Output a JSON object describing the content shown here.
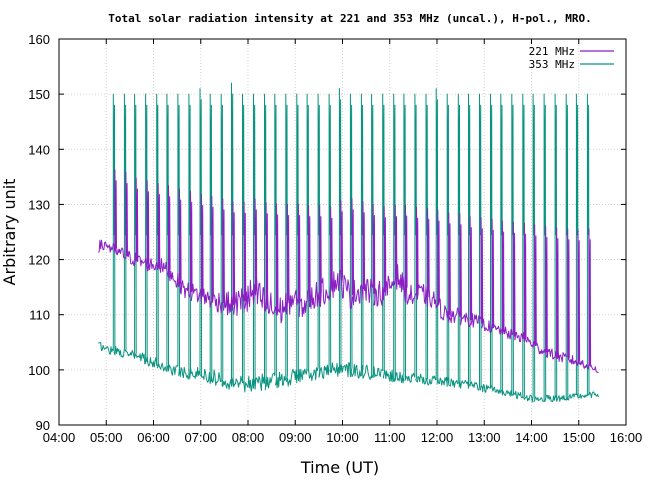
{
  "chart_data": {
    "type": "line",
    "title": "Total solar radiation intensity at 221 and 353 MHz (uncal.), H-pol., MRO.",
    "xlabel": "Time (UT)",
    "ylabel": "Arbitrary unit",
    "xlim": [
      "04:00",
      "16:00"
    ],
    "ylim": [
      90,
      160
    ],
    "x_ticks": [
      "04:00",
      "05:00",
      "06:00",
      "07:00",
      "08:00",
      "09:00",
      "10:00",
      "11:00",
      "12:00",
      "13:00",
      "14:00",
      "15:00",
      "16:00"
    ],
    "y_ticks": [
      90,
      100,
      110,
      120,
      130,
      140,
      150,
      160
    ],
    "grid": true,
    "legend_position": "top-right",
    "series": [
      {
        "name": "221 MHz",
        "color": "#8b1fc4",
        "baseline": [
          [
            "04:50",
            122.2
          ],
          [
            "05:00",
            122.8
          ],
          [
            "05:10",
            121.6
          ],
          [
            "05:20",
            121.0
          ],
          [
            "05:30",
            120.4
          ],
          [
            "05:40",
            119.8
          ],
          [
            "05:50",
            119.3
          ],
          [
            "06:00",
            119.0
          ],
          [
            "06:10",
            118.8
          ],
          [
            "06:20",
            117.8
          ],
          [
            "06:40",
            114.5
          ],
          [
            "07:00",
            113.5
          ],
          [
            "07:20",
            112.5
          ],
          [
            "07:40",
            111.8
          ],
          [
            "07:55",
            112.5
          ],
          [
            "08:10",
            113.8
          ],
          [
            "08:25",
            111.5
          ],
          [
            "08:40",
            110.5
          ],
          [
            "08:55",
            113.0
          ],
          [
            "09:10",
            111.5
          ],
          [
            "09:25",
            113.5
          ],
          [
            "09:40",
            114.5
          ],
          [
            "09:55",
            116.5
          ],
          [
            "10:10",
            113.5
          ],
          [
            "10:25",
            114.8
          ],
          [
            "10:40",
            113.8
          ],
          [
            "10:55",
            114.2
          ],
          [
            "11:10",
            117.0
          ],
          [
            "11:25",
            113.2
          ],
          [
            "11:40",
            113.8
          ],
          [
            "11:55",
            112.8
          ],
          [
            "12:10",
            110.2
          ],
          [
            "12:30",
            109.6
          ],
          [
            "12:50",
            108.8
          ],
          [
            "13:10",
            107.6
          ],
          [
            "13:30",
            106.6
          ],
          [
            "13:50",
            105.8
          ],
          [
            "14:10",
            103.8
          ],
          [
            "14:30",
            102.6
          ],
          [
            "14:50",
            101.8
          ],
          [
            "15:10",
            101.0
          ],
          [
            "15:25",
            100.0
          ]
        ],
        "noise_amplitude": [
          [
            "04:50",
            1.2
          ],
          [
            "06:30",
            1.5
          ],
          [
            "07:40",
            2.2
          ],
          [
            "08:00",
            3.5
          ],
          [
            "09:00",
            2.5
          ],
          [
            "10:00",
            2.6
          ],
          [
            "11:00",
            2.3
          ],
          [
            "12:00",
            1.8
          ],
          [
            "13:00",
            1.1
          ],
          [
            "14:00",
            1.0
          ],
          [
            "15:25",
            0.9
          ]
        ],
        "spikes": [
          [
            "05:11",
            136.3
          ],
          [
            "05:25",
            135.8
          ],
          [
            "05:38",
            134.8
          ],
          [
            "05:52",
            134.3
          ],
          [
            "06:06",
            133.8
          ],
          [
            "06:19",
            133.4
          ],
          [
            "06:33",
            132.8
          ],
          [
            "06:47",
            132.4
          ],
          [
            "07:01",
            131.8
          ],
          [
            "07:14",
            131.5
          ],
          [
            "07:28",
            131.0
          ],
          [
            "07:41",
            130.5
          ],
          [
            "07:55",
            130.4
          ],
          [
            "08:09",
            131.0
          ],
          [
            "08:23",
            130.3
          ],
          [
            "08:36",
            130.1
          ],
          [
            "08:50",
            130.0
          ],
          [
            "09:04",
            130.0
          ],
          [
            "09:17",
            129.8
          ],
          [
            "09:31",
            129.8
          ],
          [
            "09:45",
            129.5
          ],
          [
            "09:58",
            130.7
          ],
          [
            "10:12",
            131.0
          ],
          [
            "10:26",
            130.5
          ],
          [
            "10:39",
            130.0
          ],
          [
            "10:53",
            129.6
          ],
          [
            "11:07",
            129.8
          ],
          [
            "11:20",
            129.9
          ],
          [
            "11:34",
            129.5
          ],
          [
            "11:48",
            129.3
          ],
          [
            "12:01",
            129.0
          ],
          [
            "12:15",
            128.5
          ],
          [
            "12:29",
            128.3
          ],
          [
            "12:42",
            127.8
          ],
          [
            "12:56",
            127.6
          ],
          [
            "13:10",
            127.3
          ],
          [
            "13:23",
            127.0
          ],
          [
            "13:37",
            126.8
          ],
          [
            "13:51",
            126.6
          ],
          [
            "14:04",
            126.3
          ],
          [
            "14:18",
            126.0
          ],
          [
            "14:32",
            125.8
          ],
          [
            "14:46",
            125.6
          ],
          [
            "14:59",
            125.4
          ],
          [
            "15:13",
            125.6
          ]
        ]
      },
      {
        "name": "353 MHz",
        "color": "#0a9480",
        "baseline": [
          [
            "04:50",
            104.5
          ],
          [
            "05:00",
            103.8
          ],
          [
            "05:20",
            103.2
          ],
          [
            "05:40",
            102.5
          ],
          [
            "06:00",
            101.3
          ],
          [
            "06:20",
            100.2
          ],
          [
            "06:40",
            99.6
          ],
          [
            "07:00",
            99.2
          ],
          [
            "07:20",
            98.5
          ],
          [
            "07:40",
            97.8
          ],
          [
            "08:00",
            97.5
          ],
          [
            "08:30",
            98.0
          ],
          [
            "09:00",
            98.8
          ],
          [
            "09:30",
            99.5
          ],
          [
            "10:00",
            100.2
          ],
          [
            "10:30",
            99.6
          ],
          [
            "11:00",
            99.0
          ],
          [
            "11:30",
            98.4
          ],
          [
            "12:00",
            98.0
          ],
          [
            "12:30",
            97.5
          ],
          [
            "13:00",
            96.7
          ],
          [
            "13:30",
            95.8
          ],
          [
            "14:00",
            94.8
          ],
          [
            "14:30",
            94.8
          ],
          [
            "15:00",
            95.2
          ],
          [
            "15:25",
            95.6
          ]
        ],
        "noise_amplitude": [
          [
            "04:50",
            0.8
          ],
          [
            "07:00",
            1.3
          ],
          [
            "08:00",
            1.6
          ],
          [
            "10:00",
            1.4
          ],
          [
            "12:00",
            0.9
          ],
          [
            "13:30",
            0.7
          ],
          [
            "15:25",
            0.5
          ]
        ],
        "spikes": [
          [
            "05:09",
            150.0
          ],
          [
            "05:23",
            150.0
          ],
          [
            "05:36",
            150.0
          ],
          [
            "05:50",
            150.0
          ],
          [
            "06:04",
            150.0
          ],
          [
            "06:17",
            150.0
          ],
          [
            "06:31",
            150.0
          ],
          [
            "06:45",
            150.0
          ],
          [
            "06:59",
            151.0
          ],
          [
            "07:12",
            150.0
          ],
          [
            "07:26",
            150.0
          ],
          [
            "07:39",
            152.0
          ],
          [
            "07:53",
            150.0
          ],
          [
            "08:07",
            150.0
          ],
          [
            "08:21",
            150.0
          ],
          [
            "08:34",
            150.0
          ],
          [
            "08:48",
            150.0
          ],
          [
            "09:02",
            150.0
          ],
          [
            "09:15",
            150.0
          ],
          [
            "09:29",
            150.0
          ],
          [
            "09:43",
            150.0
          ],
          [
            "09:56",
            151.0
          ],
          [
            "10:10",
            150.0
          ],
          [
            "10:24",
            150.0
          ],
          [
            "10:37",
            150.0
          ],
          [
            "10:51",
            150.0
          ],
          [
            "11:05",
            150.0
          ],
          [
            "11:18",
            150.0
          ],
          [
            "11:32",
            150.0
          ],
          [
            "11:46",
            150.0
          ],
          [
            "11:59",
            151.0
          ],
          [
            "12:13",
            150.0
          ],
          [
            "12:27",
            150.0
          ],
          [
            "12:40",
            150.0
          ],
          [
            "12:54",
            150.0
          ],
          [
            "13:08",
            150.0
          ],
          [
            "13:21",
            150.0
          ],
          [
            "13:35",
            150.0
          ],
          [
            "13:49",
            150.0
          ],
          [
            "14:02",
            150.0
          ],
          [
            "14:16",
            150.0
          ],
          [
            "14:30",
            150.0
          ],
          [
            "14:44",
            150.0
          ],
          [
            "14:57",
            150.0
          ],
          [
            "15:11",
            150.0
          ]
        ],
        "post_spike_level": 124.5
      }
    ]
  }
}
